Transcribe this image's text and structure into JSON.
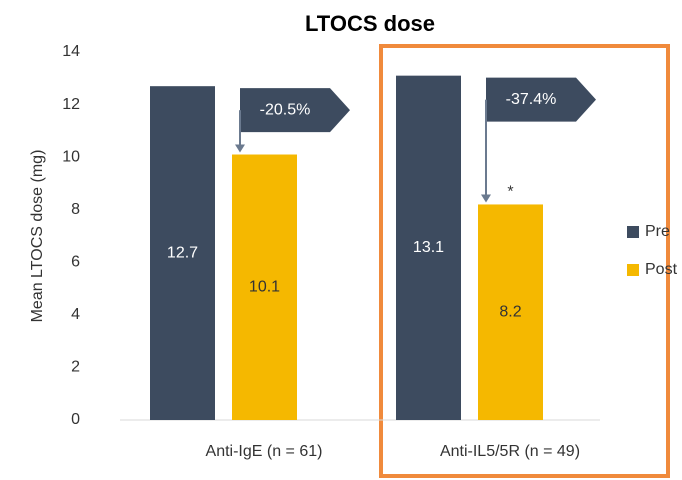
{
  "chart_data": {
    "type": "bar",
    "title": "LTOCS dose",
    "y_label": "Mean LTOCS dose (mg)",
    "categories": [
      "Anti-IgE (n = 61)",
      "Anti-IL5/5R (n = 49)"
    ],
    "series": [
      {
        "name": "Pre",
        "color": "#3d4b5f",
        "values": [
          12.7,
          13.1
        ]
      },
      {
        "name": "Post",
        "color": "#f5b800",
        "values": [
          10.1,
          8.2
        ]
      }
    ],
    "ylim": [
      0,
      14
    ],
    "yticks": [
      0,
      2,
      4,
      6,
      8,
      10,
      12,
      14
    ],
    "grid": false,
    "legend": "right",
    "annotations": [
      "-20.5%",
      "-37.4%",
      "*"
    ]
  }
}
